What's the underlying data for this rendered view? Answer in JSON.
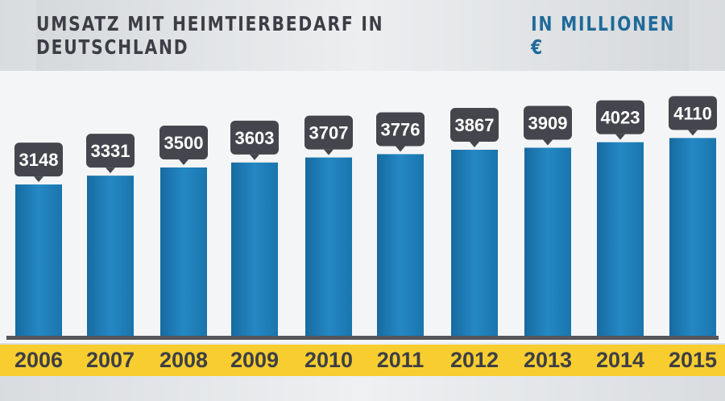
{
  "title": {
    "main": "UMSATZ MIT HEIMTIERBEDARF IN DEUTSCHLAND",
    "unit": "IN MILLIONEN €"
  },
  "colors": {
    "bar": "#1f7fb8",
    "callout": "#45464d",
    "band": "#f7cd30",
    "unit_text": "#1f6a9a"
  },
  "chart_data": {
    "type": "bar",
    "title": "UMSATZ MIT HEIMTIERBEDARF IN DEUTSCHLAND IN MILLIONEN €",
    "categories": [
      "2006",
      "2007",
      "2008",
      "2009",
      "2010",
      "2011",
      "2012",
      "2013",
      "2014",
      "2015"
    ],
    "values": [
      3148,
      3331,
      3500,
      3603,
      3707,
      3776,
      3867,
      3909,
      4023,
      4110
    ],
    "data_labels": [
      "3148",
      "3331",
      "3500",
      "3603",
      "3707",
      "3776",
      "3867",
      "3909",
      "4023",
      "4110"
    ],
    "ylim": [
      0,
      4500
    ],
    "grid": false,
    "legend": "none"
  }
}
